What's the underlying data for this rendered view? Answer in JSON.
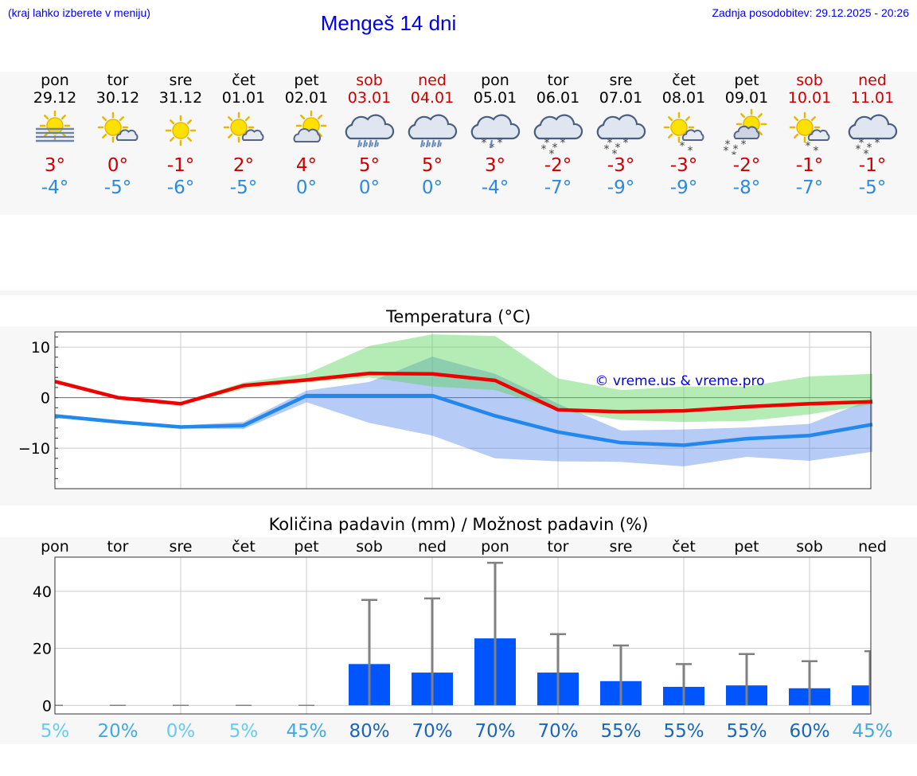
{
  "header": {
    "menu_hint": "(kraj lahko izberete v meniju)",
    "title": "Mengeš 14 dni",
    "updated": "Zadnja posodobitev: 29.12.2025 - 20:26"
  },
  "days": [
    {
      "name": "pon",
      "date": "29.12",
      "tmax": "3°",
      "tmin": "-4°",
      "icon": "fog-sun-icon",
      "weekend": false
    },
    {
      "name": "tor",
      "date": "30.12",
      "tmax": "0°",
      "tmin": "-5°",
      "icon": "sun-cloud-icon",
      "weekend": false
    },
    {
      "name": "sre",
      "date": "31.12",
      "tmax": "-1°",
      "tmin": "-6°",
      "icon": "sun-icon",
      "weekend": false
    },
    {
      "name": "čet",
      "date": "01.01",
      "tmax": "2°",
      "tmin": "-5°",
      "icon": "sun-cloud-icon",
      "weekend": false
    },
    {
      "name": "pet",
      "date": "02.01",
      "tmax": "4°",
      "tmin": "0°",
      "icon": "sun-cloudy-icon",
      "weekend": false
    },
    {
      "name": "sob",
      "date": "03.01",
      "tmax": "5°",
      "tmin": "0°",
      "icon": "rain-icon",
      "weekend": true
    },
    {
      "name": "ned",
      "date": "04.01",
      "tmax": "5°",
      "tmin": "0°",
      "icon": "rain-icon",
      "weekend": true
    },
    {
      "name": "pon",
      "date": "05.01",
      "tmax": "3°",
      "tmin": "-4°",
      "icon": "sleet-icon",
      "weekend": false
    },
    {
      "name": "tor",
      "date": "06.01",
      "tmax": "-2°",
      "tmin": "-7°",
      "icon": "snow-icon",
      "weekend": false
    },
    {
      "name": "sre",
      "date": "07.01",
      "tmax": "-3°",
      "tmin": "-9°",
      "icon": "snow-icon",
      "weekend": false
    },
    {
      "name": "čet",
      "date": "08.01",
      "tmax": "-3°",
      "tmin": "-9°",
      "icon": "sun-snow-icon",
      "weekend": false
    },
    {
      "name": "pet",
      "date": "09.01",
      "tmax": "-2°",
      "tmin": "-8°",
      "icon": "sun-cloud-snow-icon",
      "weekend": false
    },
    {
      "name": "sob",
      "date": "10.01",
      "tmax": "-1°",
      "tmin": "-7°",
      "icon": "sun-snow-icon",
      "weekend": true
    },
    {
      "name": "ned",
      "date": "11.01",
      "tmax": "-1°",
      "tmin": "-5°",
      "icon": "snow-icon",
      "weekend": true
    }
  ],
  "chart_data": [
    {
      "type": "line",
      "title": "Temperatura (°C)",
      "watermark": "© vreme.us & vreme.pro",
      "ylim": [
        -18,
        13
      ],
      "yticks": [
        10,
        0,
        -10
      ],
      "ytick_labels": [
        "10",
        "0",
        "−10"
      ],
      "x": [
        0,
        1,
        2,
        3,
        4,
        5,
        6,
        7,
        8,
        9,
        10,
        11,
        12,
        13
      ],
      "series": [
        {
          "name": "max",
          "color": "#ee0000",
          "values": [
            3.2,
            0,
            -1.2,
            2.4,
            3.5,
            4.8,
            4.7,
            3.4,
            -2.4,
            -2.8,
            -2.6,
            -1.8,
            -1.2,
            -0.8
          ]
        },
        {
          "name": "min",
          "color": "#2288ee",
          "values": [
            -3.6,
            -4.8,
            -5.8,
            -5.5,
            0.4,
            0.4,
            0.4,
            -3.6,
            -6.8,
            -8.9,
            -9.4,
            -8.1,
            -7.5,
            -5.3
          ]
        }
      ],
      "max_band": {
        "upper": [
          3.2,
          0.2,
          -0.9,
          3,
          4.7,
          10.2,
          12.5,
          12.2,
          3.8,
          1.5,
          2.2,
          2.2,
          4.2,
          4.7
        ],
        "lower": [
          3.2,
          -0.3,
          -1.4,
          1.7,
          3,
          4,
          2.2,
          1.5,
          -2.5,
          -4.4,
          -4.8,
          -4.6,
          -3.3,
          -1.3
        ]
      },
      "min_band": {
        "upper": [
          -3.6,
          -4.5,
          -5.5,
          -4.8,
          1.4,
          3.1,
          8.1,
          4.7,
          -1.2,
          -6.5,
          -6.3,
          -5.9,
          -5.2,
          -0.2
        ],
        "lower": [
          -3.6,
          -5.1,
          -6.1,
          -6.2,
          -0.9,
          -5,
          -7.5,
          -12,
          -12.6,
          -12.7,
          -13.6,
          -11.7,
          -12.5,
          -10.7
        ]
      }
    },
    {
      "type": "bar",
      "title": "Količina padavin (mm) / Možnost padavin (%)",
      "ylim": [
        -3,
        52
      ],
      "yticks": [
        40,
        20,
        0
      ],
      "ytick_labels": [
        "40",
        "20",
        "0"
      ],
      "categories": [
        "pon",
        "tor",
        "sre",
        "čet",
        "pet",
        "sob",
        "ned",
        "pon",
        "tor",
        "sre",
        "čet",
        "pet",
        "sob",
        "ned"
      ],
      "values": [
        0,
        0,
        0,
        0,
        0,
        14.5,
        11.5,
        23.5,
        11.5,
        8.5,
        6.5,
        7,
        6,
        7
      ],
      "error_max": [
        0,
        0.1,
        0,
        0.1,
        0.2,
        37,
        37.5,
        50,
        25,
        21,
        14.5,
        18,
        15.5,
        19
      ],
      "probability": [
        "5%",
        "20%",
        "0%",
        "5%",
        "45%",
        "80%",
        "70%",
        "70%",
        "70%",
        "55%",
        "55%",
        "55%",
        "60%",
        "45%"
      ],
      "probability_colors": [
        "#66ccee",
        "#44aadd",
        "#66ccee",
        "#66ccee",
        "#44aadd",
        "#1a66bb",
        "#1a66bb",
        "#1a66bb",
        "#1a66bb",
        "#1a66bb",
        "#1a66bb",
        "#1a66bb",
        "#1a66bb",
        "#44aadd"
      ],
      "bar_color": "#0055ff",
      "error_color": "#808080"
    }
  ]
}
